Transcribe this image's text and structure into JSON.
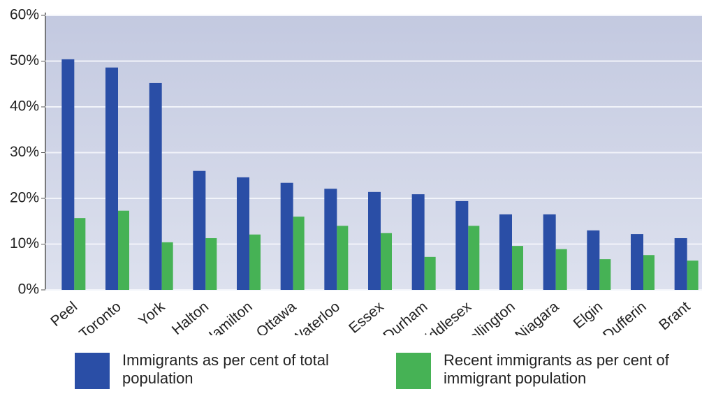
{
  "chart_data": {
    "type": "bar",
    "categories": [
      "Peel",
      "Toronto",
      "York",
      "Halton",
      "Hamilton",
      "Ottawa",
      "Waterloo",
      "Essex",
      "Durham",
      "Middlesex",
      "Wellington",
      "Niagara",
      "Elgin",
      "Dufferin",
      "Brant"
    ],
    "series": [
      {
        "name": "Immigrants as per cent of total population",
        "color": "#2a4ea6",
        "values": [
          50.4,
          48.6,
          45.2,
          26.0,
          24.6,
          23.4,
          22.1,
          21.4,
          20.9,
          19.4,
          16.5,
          16.5,
          13.0,
          12.2,
          11.3
        ]
      },
      {
        "name": "Recent immigrants as per cent of immigrant population",
        "color": "#46b255",
        "values": [
          15.7,
          17.3,
          10.4,
          11.3,
          12.1,
          16.0,
          14.0,
          12.4,
          7.2,
          14.0,
          9.6,
          8.9,
          6.7,
          7.6,
          6.4
        ]
      }
    ],
    "ylim": [
      0,
      60
    ],
    "yticks": [
      {
        "value": 0,
        "label": "0%"
      },
      {
        "value": 10,
        "label": "10%"
      },
      {
        "value": 20,
        "label": "20%"
      },
      {
        "value": 30,
        "label": "30%"
      },
      {
        "value": 40,
        "label": "40%"
      },
      {
        "value": 50,
        "label": "50%"
      },
      {
        "value": 60,
        "label": "60%"
      }
    ],
    "grid": true
  }
}
